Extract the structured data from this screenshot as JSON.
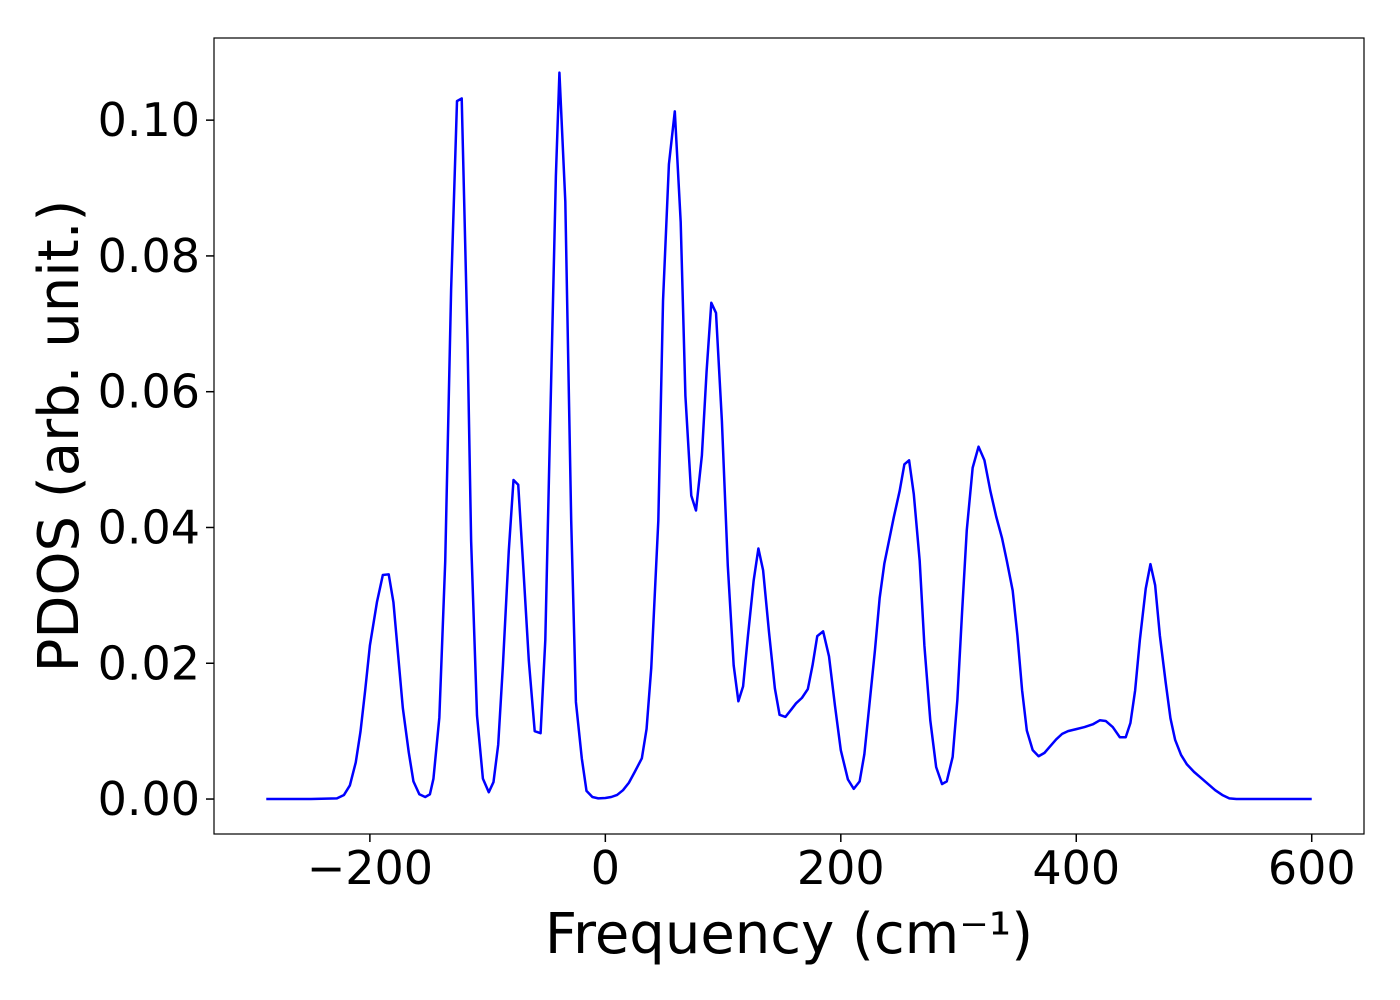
{
  "chart_data": {
    "type": "line",
    "xlabel": "Frequency (cm⁻¹)",
    "ylabel": "PDOS (arb. unit.)",
    "xlim": [
      -332.4,
      644.4
    ],
    "ylim": [
      -0.00515,
      0.1121
    ],
    "xticks": [
      {
        "value": -200,
        "label": "−200"
      },
      0,
      200,
      400,
      600
    ],
    "yticks": [
      {
        "value": 0,
        "label": "0.00"
      },
      {
        "value": 0.02,
        "label": "0.02"
      },
      {
        "value": 0.04,
        "label": "0.04"
      },
      {
        "value": 0.06,
        "label": "0.06"
      },
      {
        "value": 0.08,
        "label": "0.08"
      },
      {
        "value": 0.1,
        "label": "0.10"
      }
    ],
    "x": [
      -288,
      -250,
      -228,
      -222,
      -217,
      -212,
      -208,
      -204,
      -200,
      -194,
      -189,
      -184,
      -180,
      -176,
      -172,
      -167,
      -163,
      -158,
      -153,
      -149,
      -146,
      -141,
      -136,
      -131,
      -126,
      -122,
      -117,
      -114,
      -109,
      -104,
      -99,
      -95,
      -91,
      -87,
      -82,
      -78,
      -74,
      -70,
      -65,
      -60,
      -55,
      -51,
      -47,
      -42,
      -39,
      -34,
      -29,
      -25,
      -20,
      -16,
      -11,
      -6,
      0,
      5,
      10,
      15,
      20,
      25,
      31,
      35,
      39,
      45,
      49,
      54,
      59,
      64,
      68,
      73,
      77,
      82,
      86,
      90,
      94,
      99,
      104,
      109,
      113,
      117,
      121,
      126,
      130,
      134,
      139,
      144,
      148,
      153,
      158,
      162,
      167,
      172,
      176,
      180,
      185,
      190,
      195,
      200,
      206,
      211,
      216,
      220,
      224,
      229,
      233,
      237,
      241,
      245,
      250,
      254,
      258,
      262,
      267,
      271,
      276,
      281,
      286,
      290,
      295,
      299,
      303,
      307,
      312,
      317,
      322,
      327,
      332,
      337,
      341,
      346,
      350,
      354,
      358,
      363,
      368,
      373,
      378,
      383,
      388,
      393,
      400,
      407,
      414,
      420,
      425,
      431,
      437,
      442,
      446,
      450,
      454,
      459,
      463,
      467,
      471,
      476,
      480,
      484,
      489,
      494,
      500,
      506,
      512,
      518,
      524,
      530,
      536,
      570,
      600
    ],
    "series": [
      {
        "name": "PDOS",
        "color": "#0000ff",
        "values": [
          0,
          0,
          0.0001,
          0.0006,
          0.002,
          0.0054,
          0.0099,
          0.016,
          0.0226,
          0.029,
          0.033,
          0.0331,
          0.029,
          0.0212,
          0.0134,
          0.0069,
          0.0026,
          0.0007,
          0.0003,
          0.0007,
          0.003,
          0.012,
          0.035,
          0.075,
          0.1028,
          0.1032,
          0.067,
          0.038,
          0.0123,
          0.003,
          0.001,
          0.0025,
          0.008,
          0.0197,
          0.0366,
          0.047,
          0.0463,
          0.035,
          0.0204,
          0.01,
          0.0097,
          0.0234,
          0.0543,
          0.0918,
          0.107,
          0.088,
          0.041,
          0.0143,
          0.006,
          0.0012,
          0.0003,
          0.0001,
          0.00015,
          0.0003,
          0.0006,
          0.0013,
          0.0024,
          0.004,
          0.006,
          0.0103,
          0.0193,
          0.041,
          0.0734,
          0.0935,
          0.1013,
          0.085,
          0.0594,
          0.0447,
          0.0425,
          0.0506,
          0.063,
          0.0731,
          0.0716,
          0.0557,
          0.0344,
          0.0197,
          0.0144,
          0.0166,
          0.0238,
          0.0322,
          0.0369,
          0.0337,
          0.0246,
          0.0163,
          0.0124,
          0.0121,
          0.0132,
          0.0141,
          0.0149,
          0.0162,
          0.0197,
          0.024,
          0.0247,
          0.021,
          0.0138,
          0.0072,
          0.0029,
          0.0015,
          0.0026,
          0.0066,
          0.0134,
          0.0219,
          0.0296,
          0.0347,
          0.0381,
          0.0415,
          0.0454,
          0.0493,
          0.0499,
          0.0449,
          0.0351,
          0.0226,
          0.0116,
          0.0047,
          0.0022,
          0.0026,
          0.0062,
          0.0146,
          0.0275,
          0.0396,
          0.0488,
          0.0519,
          0.0499,
          0.0454,
          0.0416,
          0.0384,
          0.0351,
          0.0307,
          0.0241,
          0.016,
          0.0101,
          0.0072,
          0.0063,
          0.0068,
          0.0078,
          0.0088,
          0.0096,
          0.01,
          0.0103,
          0.0106,
          0.011,
          0.0116,
          0.0115,
          0.0106,
          0.0091,
          0.0091,
          0.0112,
          0.016,
          0.0234,
          0.031,
          0.0346,
          0.0315,
          0.0241,
          0.0171,
          0.0119,
          0.0087,
          0.0065,
          0.0051,
          0.004,
          0.0031,
          0.0022,
          0.0013,
          0.0006,
          0.0001,
          0,
          0,
          0
        ]
      }
    ]
  }
}
